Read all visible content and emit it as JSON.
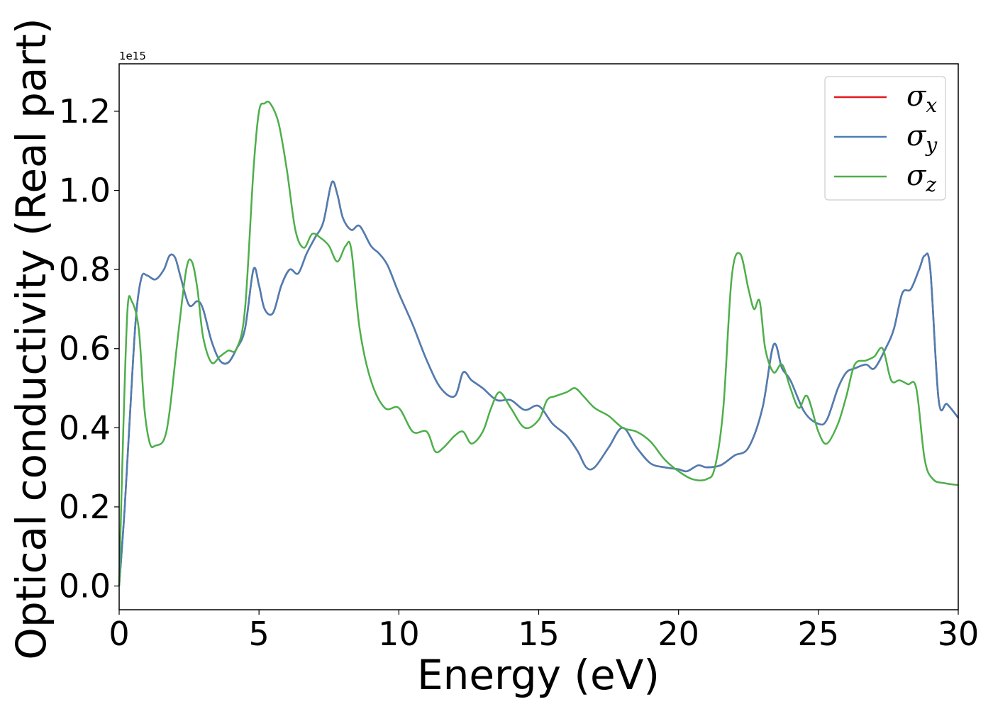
{
  "chart_data": {
    "type": "line",
    "xlabel": "Energy (eV)",
    "ylabel": "Optical conductivity (Real part)",
    "y_offset_text": "1e15",
    "xlim": [
      0,
      30
    ],
    "ylim": [
      -0.06,
      1.32
    ],
    "x_ticks": [
      0,
      5,
      10,
      15,
      20,
      25,
      30
    ],
    "x_tick_labels": [
      "0",
      "5",
      "10",
      "15",
      "20",
      "25",
      "30"
    ],
    "y_ticks": [
      0.0,
      0.2,
      0.4,
      0.6,
      0.8,
      1.0,
      1.2
    ],
    "y_tick_labels": [
      "0.0",
      "0.2",
      "0.4",
      "0.6",
      "0.8",
      "1.0",
      "1.2"
    ],
    "grid": false,
    "legend_position": "top-right",
    "series": [
      {
        "name": "σx",
        "symbol": "σ",
        "subscript": "x",
        "color": "#e41a1c",
        "x": [
          0,
          0.2,
          0.4,
          0.6,
          0.8,
          1.0,
          1.3,
          1.6,
          1.8,
          2.0,
          2.2,
          2.5,
          2.8,
          3.0,
          3.3,
          3.6,
          3.9,
          4.2,
          4.5,
          4.8,
          5.0,
          5.2,
          5.5,
          5.8,
          6.1,
          6.4,
          6.7,
          7.0,
          7.3,
          7.6,
          7.8,
          8.0,
          8.3,
          8.6,
          9.0,
          9.3,
          9.6,
          10.0,
          10.5,
          11.0,
          11.5,
          12.0,
          12.3,
          12.6,
          13.0,
          13.5,
          14.0,
          14.5,
          15.0,
          15.5,
          16.0,
          16.4,
          16.7,
          17.0,
          17.5,
          18.0,
          18.5,
          19.0,
          19.5,
          20.0,
          20.3,
          20.7,
          21.0,
          21.5,
          22.0,
          22.5,
          23.0,
          23.4,
          23.7,
          24.0,
          24.5,
          25.0,
          25.3,
          25.7,
          26.0,
          26.3,
          26.7,
          27.0,
          27.4,
          27.7,
          28.0,
          28.3,
          28.6,
          28.8,
          29.0,
          29.3,
          29.6,
          30.0
        ],
        "y": [
          0.0,
          0.2,
          0.45,
          0.68,
          0.78,
          0.785,
          0.775,
          0.8,
          0.835,
          0.83,
          0.78,
          0.71,
          0.72,
          0.7,
          0.62,
          0.57,
          0.565,
          0.6,
          0.65,
          0.8,
          0.76,
          0.7,
          0.69,
          0.76,
          0.8,
          0.79,
          0.84,
          0.88,
          0.92,
          1.02,
          0.99,
          0.93,
          0.9,
          0.91,
          0.86,
          0.84,
          0.81,
          0.74,
          0.66,
          0.57,
          0.5,
          0.48,
          0.54,
          0.52,
          0.5,
          0.47,
          0.47,
          0.445,
          0.455,
          0.41,
          0.38,
          0.34,
          0.3,
          0.3,
          0.35,
          0.4,
          0.35,
          0.31,
          0.3,
          0.295,
          0.29,
          0.305,
          0.3,
          0.305,
          0.33,
          0.35,
          0.45,
          0.61,
          0.55,
          0.52,
          0.44,
          0.41,
          0.42,
          0.5,
          0.54,
          0.55,
          0.56,
          0.55,
          0.6,
          0.65,
          0.74,
          0.75,
          0.8,
          0.835,
          0.8,
          0.47,
          0.46,
          0.425
        ]
      },
      {
        "name": "σy",
        "symbol": "σ",
        "subscript": "y",
        "color": "#4a7fb5",
        "x": [
          0,
          0.2,
          0.4,
          0.6,
          0.8,
          1.0,
          1.3,
          1.6,
          1.8,
          2.0,
          2.2,
          2.5,
          2.8,
          3.0,
          3.3,
          3.6,
          3.9,
          4.2,
          4.5,
          4.8,
          5.0,
          5.2,
          5.5,
          5.8,
          6.1,
          6.4,
          6.7,
          7.0,
          7.3,
          7.6,
          7.8,
          8.0,
          8.3,
          8.6,
          9.0,
          9.3,
          9.6,
          10.0,
          10.5,
          11.0,
          11.5,
          12.0,
          12.3,
          12.6,
          13.0,
          13.5,
          14.0,
          14.5,
          15.0,
          15.5,
          16.0,
          16.4,
          16.7,
          17.0,
          17.5,
          18.0,
          18.5,
          19.0,
          19.5,
          20.0,
          20.3,
          20.7,
          21.0,
          21.5,
          22.0,
          22.5,
          23.0,
          23.4,
          23.7,
          24.0,
          24.5,
          25.0,
          25.3,
          25.7,
          26.0,
          26.3,
          26.7,
          27.0,
          27.4,
          27.7,
          28.0,
          28.3,
          28.6,
          28.8,
          29.0,
          29.3,
          29.6,
          30.0
        ],
        "y": [
          0.0,
          0.2,
          0.45,
          0.68,
          0.78,
          0.785,
          0.775,
          0.8,
          0.835,
          0.83,
          0.78,
          0.71,
          0.72,
          0.7,
          0.62,
          0.57,
          0.565,
          0.6,
          0.65,
          0.8,
          0.76,
          0.7,
          0.69,
          0.76,
          0.8,
          0.79,
          0.84,
          0.88,
          0.92,
          1.02,
          0.99,
          0.93,
          0.9,
          0.91,
          0.86,
          0.84,
          0.81,
          0.74,
          0.66,
          0.57,
          0.5,
          0.48,
          0.54,
          0.52,
          0.5,
          0.47,
          0.47,
          0.445,
          0.455,
          0.41,
          0.38,
          0.34,
          0.3,
          0.3,
          0.35,
          0.4,
          0.35,
          0.31,
          0.3,
          0.295,
          0.29,
          0.305,
          0.3,
          0.305,
          0.33,
          0.35,
          0.45,
          0.61,
          0.55,
          0.52,
          0.44,
          0.41,
          0.42,
          0.5,
          0.54,
          0.55,
          0.56,
          0.55,
          0.6,
          0.65,
          0.74,
          0.75,
          0.8,
          0.835,
          0.8,
          0.47,
          0.46,
          0.425
        ]
      },
      {
        "name": "σz",
        "symbol": "σ",
        "subscript": "z",
        "color": "#4daf4a",
        "x": [
          0,
          0.15,
          0.3,
          0.45,
          0.7,
          0.9,
          1.1,
          1.3,
          1.6,
          1.8,
          2.1,
          2.4,
          2.6,
          2.8,
          3.0,
          3.3,
          3.6,
          3.9,
          4.2,
          4.5,
          4.8,
          5.0,
          5.2,
          5.4,
          5.7,
          6.0,
          6.3,
          6.6,
          6.9,
          7.2,
          7.5,
          7.8,
          8.1,
          8.3,
          8.6,
          9.0,
          9.5,
          10.0,
          10.5,
          11.0,
          11.3,
          11.6,
          12.0,
          12.3,
          12.6,
          13.0,
          13.3,
          13.6,
          14.0,
          14.5,
          15.0,
          15.3,
          15.6,
          16.0,
          16.3,
          16.6,
          17.0,
          17.5,
          18.0,
          18.5,
          19.0,
          19.5,
          20.0,
          20.5,
          21.0,
          21.3,
          21.6,
          21.9,
          22.2,
          22.5,
          22.7,
          22.9,
          23.1,
          23.4,
          23.7,
          24.0,
          24.3,
          24.6,
          25.0,
          25.3,
          25.7,
          26.0,
          26.3,
          26.7,
          27.0,
          27.3,
          27.6,
          27.9,
          28.2,
          28.5,
          28.8,
          29.1,
          29.5,
          30.0
        ],
        "y": [
          0.0,
          0.4,
          0.7,
          0.72,
          0.65,
          0.45,
          0.36,
          0.355,
          0.37,
          0.44,
          0.63,
          0.8,
          0.82,
          0.75,
          0.63,
          0.565,
          0.58,
          0.595,
          0.6,
          0.7,
          1.05,
          1.2,
          1.22,
          1.22,
          1.17,
          1.05,
          0.9,
          0.855,
          0.89,
          0.88,
          0.86,
          0.82,
          0.86,
          0.85,
          0.65,
          0.52,
          0.45,
          0.45,
          0.39,
          0.39,
          0.34,
          0.35,
          0.38,
          0.39,
          0.36,
          0.39,
          0.45,
          0.49,
          0.45,
          0.4,
          0.42,
          0.47,
          0.48,
          0.49,
          0.5,
          0.48,
          0.45,
          0.43,
          0.4,
          0.39,
          0.365,
          0.32,
          0.29,
          0.27,
          0.27,
          0.3,
          0.45,
          0.78,
          0.84,
          0.75,
          0.7,
          0.72,
          0.6,
          0.54,
          0.56,
          0.5,
          0.45,
          0.48,
          0.39,
          0.36,
          0.41,
          0.48,
          0.56,
          0.57,
          0.58,
          0.6,
          0.52,
          0.52,
          0.51,
          0.5,
          0.32,
          0.27,
          0.26,
          0.255
        ]
      }
    ]
  }
}
